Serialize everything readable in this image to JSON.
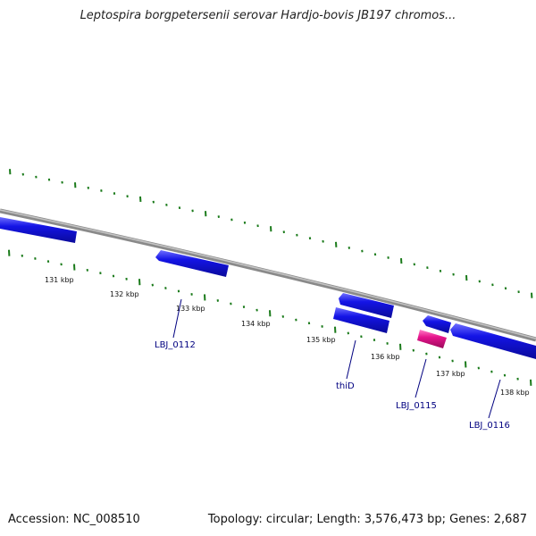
{
  "title": "Leptospira borgpetersenii serovar Hardjo-bovis JB197 chromos...",
  "footer": {
    "accession": "Accession: NC_008510",
    "summary": "Topology: circular; Length: 3,576,473 bp; Genes: 2,687"
  },
  "colors": {
    "backbone": "#8a8a8a",
    "gene_forward": "#1414e6",
    "gene_highlight": "#e6148c",
    "ticks": "#1a7a1a",
    "gene_label": "#000080"
  },
  "ticks": {
    "labels": [
      "131 kbp",
      "132 kbp",
      "133 kbp",
      "134 kbp",
      "135 kbp",
      "136 kbp",
      "137 kbp",
      "138 kbp"
    ]
  },
  "gene_labels": [
    "LBJ_0112",
    "thiD",
    "LBJ_0115",
    "LBJ_0116"
  ]
}
